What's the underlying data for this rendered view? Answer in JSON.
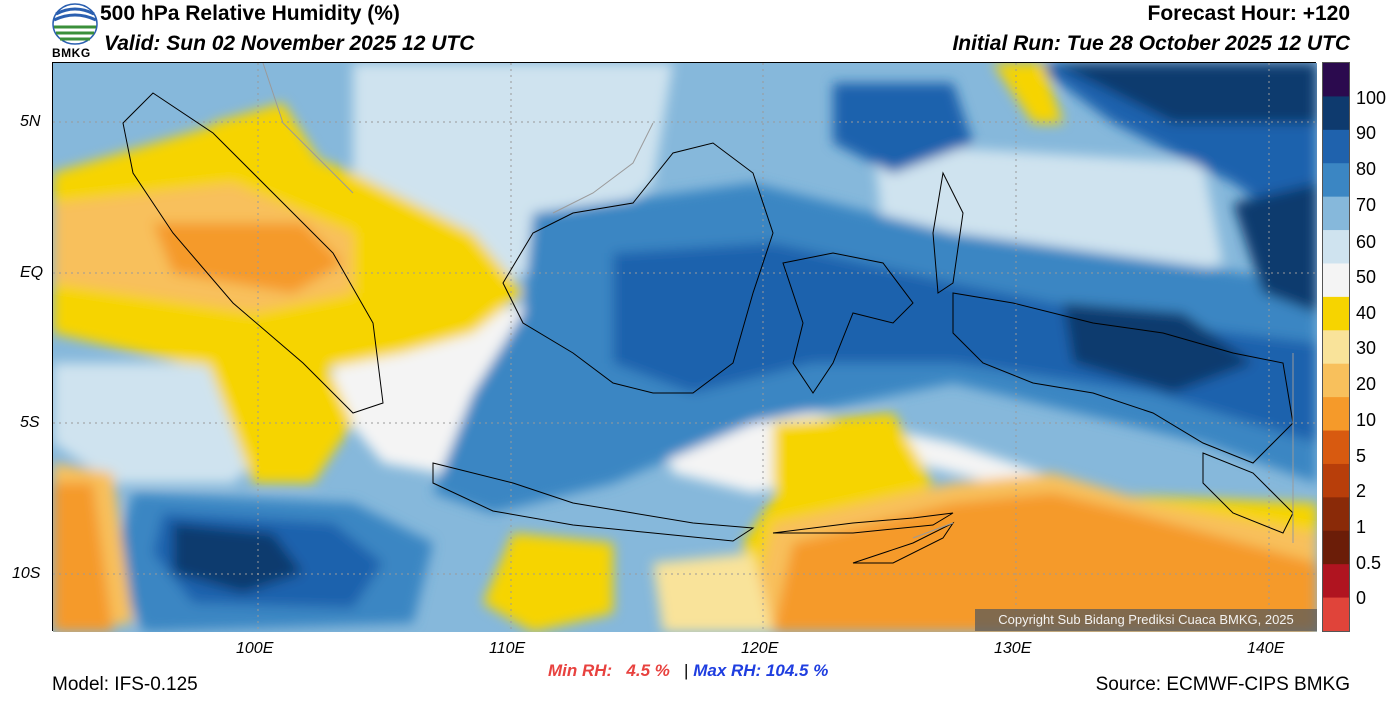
{
  "header": {
    "title": "500 hPa Relative Humidity (%)",
    "valid": "Valid: Sun 02 November 2025 12 UTC",
    "forecast_hour": "Forecast Hour: +120",
    "initial_run": "Initial Run: Tue 28 October 2025 12 UTC",
    "logo_text": "BMKG"
  },
  "map": {
    "lat_labels": [
      "5N",
      "EQ",
      "5S",
      "10S"
    ],
    "lon_labels": [
      "100E",
      "110E",
      "120E",
      "130E",
      "140E"
    ],
    "copyright": "Copyright Sub Bidang Prediksi Cuaca BMKG, 2025"
  },
  "colorbar": {
    "labels": [
      "100",
      "90",
      "80",
      "70",
      "60",
      "50",
      "40",
      "30",
      "20",
      "10",
      "5",
      "2",
      "1",
      "0.5",
      "0"
    ],
    "colors": [
      "#2b0a4e",
      "#0e3a6e",
      "#1f62ad",
      "#3b86c3",
      "#86b8db",
      "#cfe3ef",
      "#f4f4f4",
      "#f6d400",
      "#f9e39a",
      "#f8c05c",
      "#f59a2a",
      "#d85a10",
      "#b83e0a",
      "#8a2a08",
      "#6b1d08",
      "#b01420",
      "#e0443a"
    ]
  },
  "footer": {
    "min_rh_label": "Min RH:",
    "min_rh_value": "4.5 %",
    "separator": "|",
    "max_rh": "Max RH: 104.5 %",
    "model": "Model: IFS-0.125",
    "source": "Source: ECMWF-CIPS BMKG"
  }
}
